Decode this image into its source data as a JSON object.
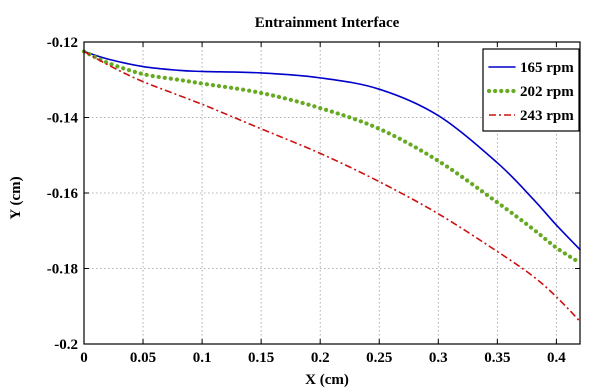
{
  "chart_data": {
    "type": "line",
    "title": "Entrainment Interface",
    "xlabel": "X (cm)",
    "ylabel": "Y (cm)",
    "xlim": [
      0,
      0.42
    ],
    "ylim": [
      -0.2,
      -0.12
    ],
    "x_ticks": [
      0,
      0.05,
      0.1,
      0.15,
      0.2,
      0.25,
      0.3,
      0.35,
      0.4
    ],
    "x_tick_labels": [
      "0",
      "0.05",
      "0.1",
      "0.15",
      "0.2",
      "0.25",
      "0.3",
      "0.35",
      "0.4"
    ],
    "y_ticks": [
      -0.2,
      -0.18,
      -0.16,
      -0.14,
      -0.12
    ],
    "y_tick_labels": [
      "-0.2",
      "-0.18",
      "-0.16",
      "-0.14",
      "-0.12"
    ],
    "grid": true,
    "legend_position": "top-right",
    "series": [
      {
        "name": "165 rpm",
        "color": "#0000cc",
        "style": "solid",
        "x": [
          0,
          0.02,
          0.05,
          0.08,
          0.1,
          0.15,
          0.2,
          0.25,
          0.3,
          0.35,
          0.38,
          0.4,
          0.42
        ],
        "y": [
          -0.1225,
          -0.1245,
          -0.1265,
          -0.1275,
          -0.1278,
          -0.1282,
          -0.1295,
          -0.1325,
          -0.1395,
          -0.152,
          -0.1615,
          -0.1685,
          -0.175
        ]
      },
      {
        "name": "202 rpm",
        "color": "#66aa22",
        "style": "dotted",
        "x": [
          0,
          0.02,
          0.05,
          0.08,
          0.1,
          0.15,
          0.2,
          0.25,
          0.3,
          0.35,
          0.38,
          0.4,
          0.42
        ],
        "y": [
          -0.1225,
          -0.1255,
          -0.1285,
          -0.13,
          -0.131,
          -0.1335,
          -0.1375,
          -0.143,
          -0.1515,
          -0.1625,
          -0.1695,
          -0.1745,
          -0.1785
        ]
      },
      {
        "name": "243 rpm",
        "color": "#cc1111",
        "style": "dashdot",
        "x": [
          0,
          0.02,
          0.05,
          0.1,
          0.15,
          0.2,
          0.25,
          0.3,
          0.35,
          0.38,
          0.4,
          0.42
        ],
        "y": [
          -0.1225,
          -0.126,
          -0.1305,
          -0.1365,
          -0.143,
          -0.1495,
          -0.157,
          -0.1655,
          -0.1755,
          -0.182,
          -0.1875,
          -0.194
        ]
      }
    ]
  }
}
